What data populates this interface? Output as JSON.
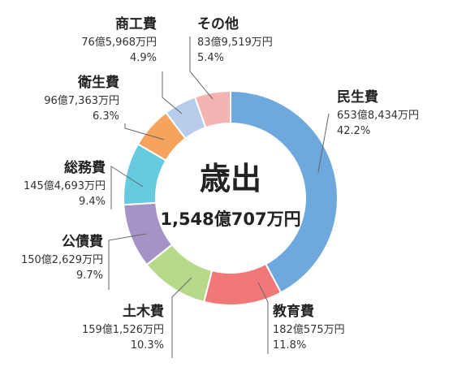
{
  "chart_data": {
    "type": "pie",
    "title": "歳出",
    "total": "1,548億707万円",
    "slices": [
      {
        "name": "民生費",
        "amount": "653億8,434万円",
        "percent": "42.2%",
        "value": 42.2,
        "color": "#6fa8dc"
      },
      {
        "name": "教育費",
        "amount": "182億575万円",
        "percent": "11.8%",
        "value": 11.8,
        "color": "#f07878"
      },
      {
        "name": "土木費",
        "amount": "159億1,526万円",
        "percent": "10.3%",
        "value": 10.3,
        "color": "#b6d98a"
      },
      {
        "name": "公債費",
        "amount": "150億2,629万円",
        "percent": "9.7%",
        "value": 9.7,
        "color": "#a593c6"
      },
      {
        "name": "総務費",
        "amount": "145億4,693万円",
        "percent": "9.4%",
        "value": 9.4,
        "color": "#66cbe0"
      },
      {
        "name": "衛生費",
        "amount": "96億7,363万円",
        "percent": "6.3%",
        "value": 6.3,
        "color": "#f6a35d"
      },
      {
        "name": "商工費",
        "amount": "76億5,968万円",
        "percent": "4.9%",
        "value": 4.9,
        "color": "#b8cdeb"
      },
      {
        "name": "その他",
        "amount": "83億9,519万円",
        "percent": "5.4%",
        "value": 5.4,
        "color": "#f4b4b4"
      }
    ]
  }
}
